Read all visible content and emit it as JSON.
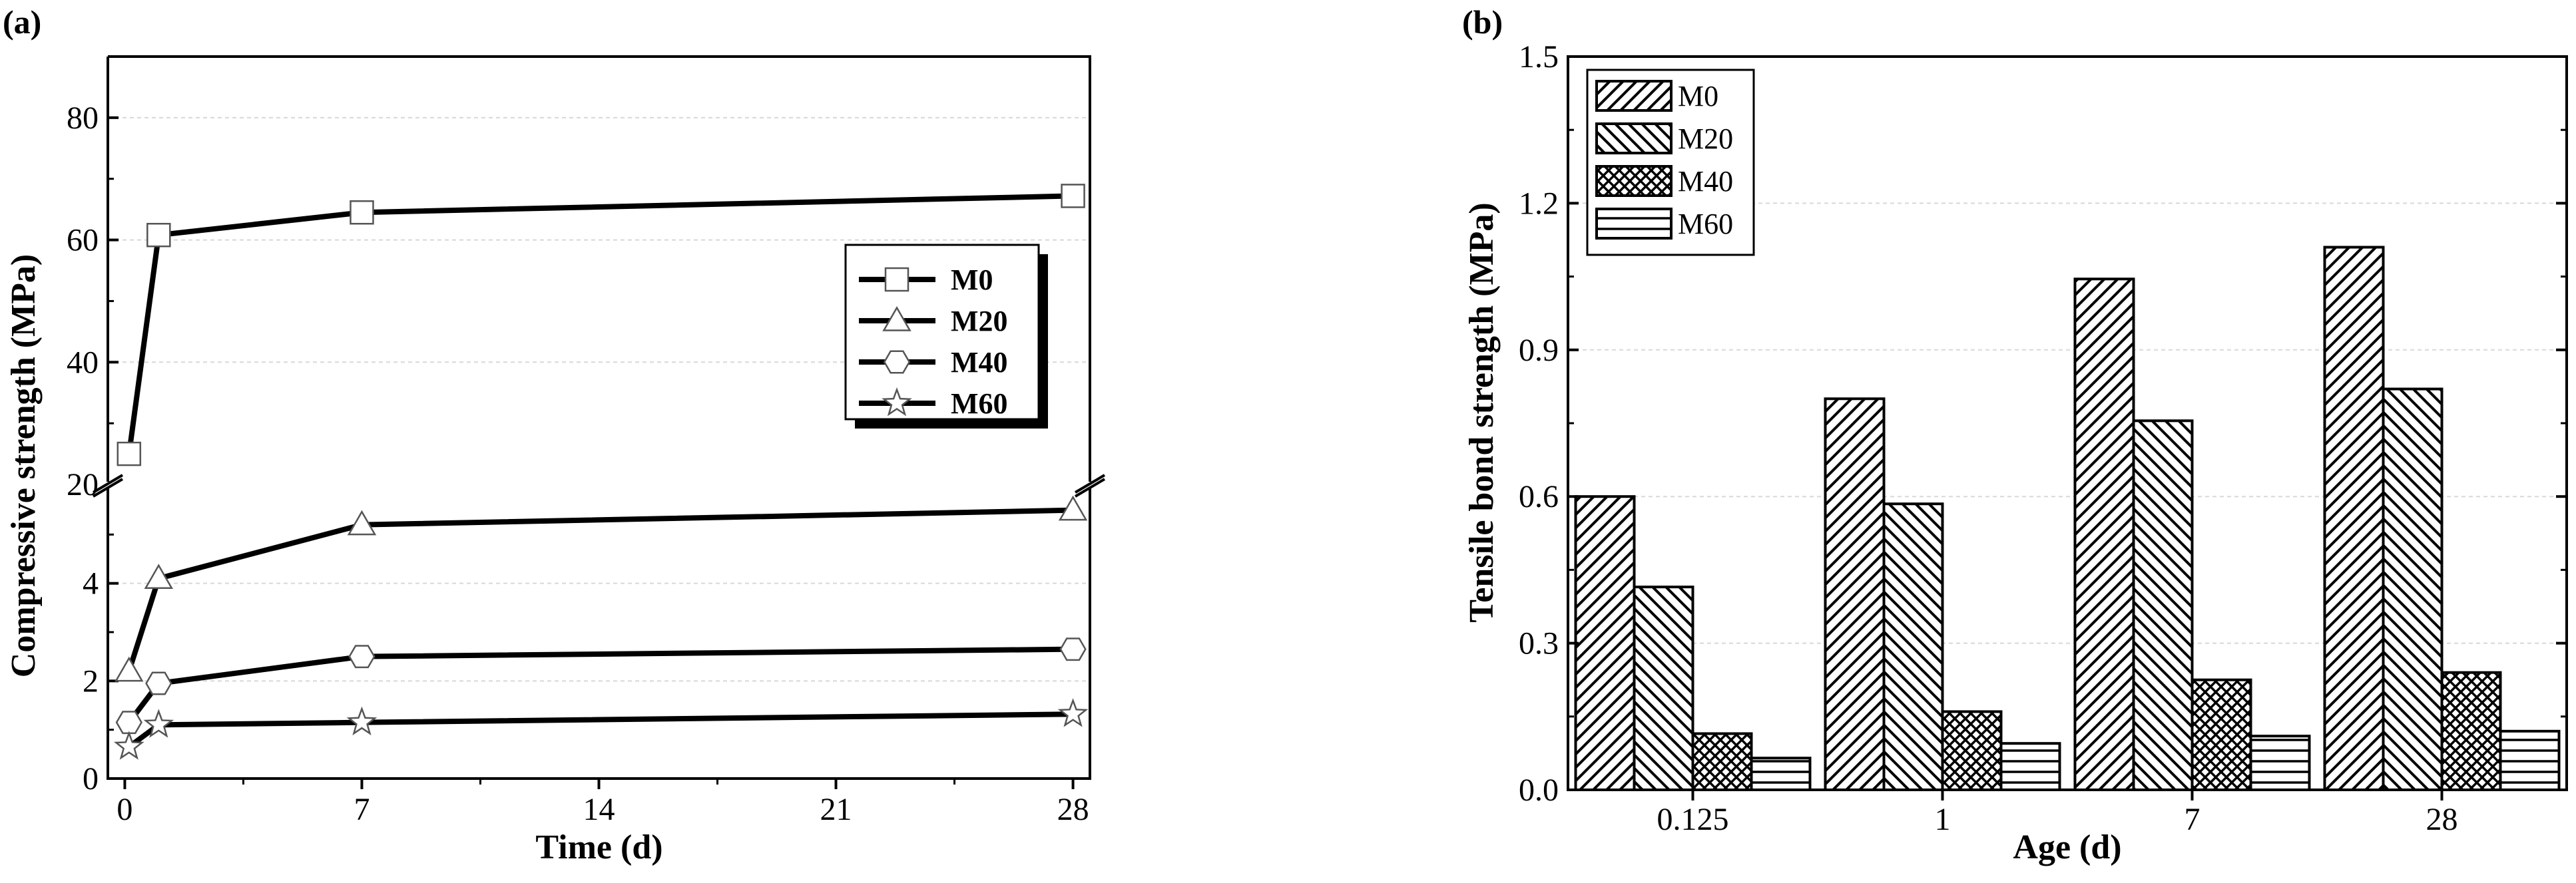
{
  "chart_data": [
    {
      "id": "a",
      "panel_label": "(a)",
      "type": "line",
      "xlabel": "Time (d)",
      "ylabel": "Compressive strength (MPa)",
      "x": [
        0.125,
        1,
        7,
        28
      ],
      "xticks": [
        "0",
        "7",
        "14",
        "21",
        "28"
      ],
      "xlim": [
        -0.5,
        28.5
      ],
      "y_break": {
        "lower_range": [
          0,
          6
        ],
        "upper_range": [
          20,
          90
        ]
      },
      "yticks_lower": [
        "0",
        "2",
        "4"
      ],
      "yticks_upper": [
        "20",
        "40",
        "60",
        "80"
      ],
      "grid": true,
      "legend_position": "center-right",
      "series": [
        {
          "name": "M0",
          "marker": "square",
          "values": [
            25.0,
            60.8,
            64.5,
            67.2
          ]
        },
        {
          "name": "M20",
          "marker": "triangle",
          "values": [
            2.2,
            4.1,
            5.2,
            5.5
          ]
        },
        {
          "name": "M40",
          "marker": "hexagon",
          "values": [
            1.15,
            1.95,
            2.5,
            2.65
          ]
        },
        {
          "name": "M60",
          "marker": "star",
          "values": [
            0.65,
            1.1,
            1.15,
            1.32
          ]
        }
      ]
    },
    {
      "id": "b",
      "panel_label": "(b)",
      "type": "bar",
      "xlabel": "Age (d)",
      "ylabel": "Tensile bond strength (MPa)",
      "categories": [
        "0.125",
        "1",
        "7",
        "28"
      ],
      "ylim": [
        0,
        1.5
      ],
      "yticks": [
        "0.0",
        "0.3",
        "0.6",
        "0.9",
        "1.2",
        "1.5"
      ],
      "grid": true,
      "legend_position": "top-left",
      "series": [
        {
          "name": "M0",
          "pattern": "diagonal-forward",
          "values": [
            0.6,
            0.8,
            1.045,
            1.11
          ]
        },
        {
          "name": "M20",
          "pattern": "diagonal-back",
          "values": [
            0.415,
            0.585,
            0.755,
            0.82
          ]
        },
        {
          "name": "M40",
          "pattern": "crosshatch",
          "values": [
            0.115,
            0.16,
            0.225,
            0.24
          ]
        },
        {
          "name": "M60",
          "pattern": "horizontal",
          "values": [
            0.065,
            0.095,
            0.11,
            0.12
          ]
        }
      ]
    }
  ]
}
